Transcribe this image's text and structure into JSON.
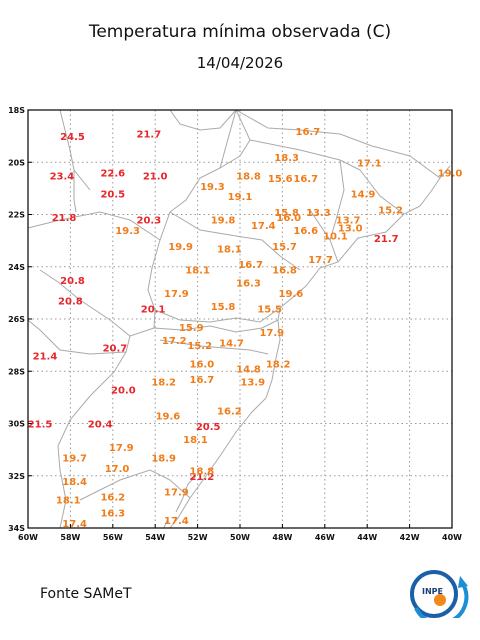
{
  "title": "Temperatura mínima observada (C)",
  "date": "14/04/2026",
  "source": "Fonte SAMeT",
  "logo_text": "INPE",
  "axes": {
    "lon_min": -60,
    "lon_max": -40,
    "lat_min": -34,
    "lat_max": -18,
    "lon_ticks": [
      {
        "v": -60,
        "t": "60W"
      },
      {
        "v": -58,
        "t": "58W"
      },
      {
        "v": -56,
        "t": "56W"
      },
      {
        "v": -54,
        "t": "54W"
      },
      {
        "v": -52,
        "t": "52W"
      },
      {
        "v": -50,
        "t": "50W"
      },
      {
        "v": -48,
        "t": "48W"
      },
      {
        "v": -46,
        "t": "46W"
      },
      {
        "v": -44,
        "t": "44W"
      },
      {
        "v": -42,
        "t": "42W"
      },
      {
        "v": -40,
        "t": "40W"
      }
    ],
    "lat_ticks": [
      {
        "v": -18,
        "t": "18S"
      },
      {
        "v": -20,
        "t": "20S"
      },
      {
        "v": -22,
        "t": "22S"
      },
      {
        "v": -24,
        "t": "24S"
      },
      {
        "v": -26,
        "t": "26S"
      },
      {
        "v": -28,
        "t": "28S"
      },
      {
        "v": -30,
        "t": "30S"
      },
      {
        "v": -32,
        "t": "32S"
      },
      {
        "v": -34,
        "t": "34S"
      }
    ],
    "grid": "dotted"
  },
  "colors": {
    "warm": "#e8262b",
    "mild": "#f07d1a",
    "border": "#aaaaaa",
    "frame": "#000000"
  },
  "stations": [
    {
      "lon": -57.9,
      "lat": -19.0,
      "v": "24.5"
    },
    {
      "lon": -54.3,
      "lat": -18.9,
      "v": "21.7"
    },
    {
      "lon": -58.4,
      "lat": -20.5,
      "v": "23.4"
    },
    {
      "lon": -56.0,
      "lat": -20.4,
      "v": "22.6"
    },
    {
      "lon": -54.0,
      "lat": -20.5,
      "v": "21.0"
    },
    {
      "lon": -56.0,
      "lat": -21.2,
      "v": "20.5"
    },
    {
      "lon": -58.3,
      "lat": -22.1,
      "v": "21.8"
    },
    {
      "lon": -54.3,
      "lat": -22.2,
      "v": "20.3"
    },
    {
      "lon": -55.3,
      "lat": -22.6,
      "v": "19.3"
    },
    {
      "lon": -52.8,
      "lat": -23.2,
      "v": "19.9"
    },
    {
      "lon": -57.9,
      "lat": -24.5,
      "v": "20.8"
    },
    {
      "lon": -58.0,
      "lat": -25.3,
      "v": "20.8"
    },
    {
      "lon": -54.1,
      "lat": -25.6,
      "v": "20.1"
    },
    {
      "lon": -59.2,
      "lat": -27.4,
      "v": "21.4"
    },
    {
      "lon": -55.9,
      "lat": -27.1,
      "v": "20.7"
    },
    {
      "lon": -55.5,
      "lat": -28.7,
      "v": "20.0"
    },
    {
      "lon": -59.9,
      "lat": -30.0,
      "v": "21.5"
    },
    {
      "lon": -56.6,
      "lat": -30.0,
      "v": "20.4"
    },
    {
      "lon": -51.5,
      "lat": -30.1,
      "v": "20.5"
    },
    {
      "lon": -51.8,
      "lat": -32.0,
      "v": "21.2"
    },
    {
      "lon": -43.1,
      "lat": -22.9,
      "v": "21.7"
    },
    {
      "lon": -51.3,
      "lat": -20.9,
      "v": "19.3"
    },
    {
      "lon": -49.6,
      "lat": -20.5,
      "v": "18.8"
    },
    {
      "lon": -48.1,
      "lat": -20.6,
      "v": "15.6"
    },
    {
      "lon": -46.9,
      "lat": -20.6,
      "v": "16.7"
    },
    {
      "lon": -46.8,
      "lat": -18.8,
      "v": "16.7"
    },
    {
      "lon": -47.8,
      "lat": -19.8,
      "v": "18.3"
    },
    {
      "lon": -43.9,
      "lat": -20.0,
      "v": "17.1"
    },
    {
      "lon": -40.0,
      "lat": -20.4,
      "v": "19.0"
    },
    {
      "lon": -50.0,
      "lat": -21.3,
      "v": "19.1"
    },
    {
      "lon": -50.8,
      "lat": -22.2,
      "v": "19.8"
    },
    {
      "lon": -47.8,
      "lat": -21.9,
      "v": "15.8"
    },
    {
      "lon": -46.3,
      "lat": -21.9,
      "v": "13.3"
    },
    {
      "lon": -44.2,
      "lat": -21.2,
      "v": "14.9"
    },
    {
      "lon": -47.7,
      "lat": -22.1,
      "v": "16.0"
    },
    {
      "lon": -48.9,
      "lat": -22.4,
      "v": "17.4"
    },
    {
      "lon": -44.9,
      "lat": -22.2,
      "v": "13.7"
    },
    {
      "lon": -42.9,
      "lat": -21.8,
      "v": "15.2"
    },
    {
      "lon": -44.8,
      "lat": -22.5,
      "v": "13.0"
    },
    {
      "lon": -46.9,
      "lat": -22.6,
      "v": "16.6"
    },
    {
      "lon": -45.5,
      "lat": -22.8,
      "v": "10.1"
    },
    {
      "lon": -50.5,
      "lat": -23.3,
      "v": "18.1"
    },
    {
      "lon": -47.9,
      "lat": -23.2,
      "v": "15.7"
    },
    {
      "lon": -49.5,
      "lat": -23.9,
      "v": "16.7"
    },
    {
      "lon": -47.9,
      "lat": -24.1,
      "v": "16.8"
    },
    {
      "lon": -46.2,
      "lat": -23.7,
      "v": "17.7"
    },
    {
      "lon": -52.0,
      "lat": -24.1,
      "v": "18.1"
    },
    {
      "lon": -49.6,
      "lat": -24.6,
      "v": "16.3"
    },
    {
      "lon": -53.0,
      "lat": -25.0,
      "v": "17.9"
    },
    {
      "lon": -50.8,
      "lat": -25.5,
      "v": "15.8"
    },
    {
      "lon": -48.6,
      "lat": -25.6,
      "v": "15.5"
    },
    {
      "lon": -47.6,
      "lat": -25.0,
      "v": "19.6"
    },
    {
      "lon": -52.3,
      "lat": -26.3,
      "v": "15.9"
    },
    {
      "lon": -48.5,
      "lat": -26.5,
      "v": "17.9"
    },
    {
      "lon": -53.1,
      "lat": -26.8,
      "v": "17.2"
    },
    {
      "lon": -51.9,
      "lat": -27.0,
      "v": "15.2"
    },
    {
      "lon": -50.4,
      "lat": -26.9,
      "v": "14.7"
    },
    {
      "lon": -51.8,
      "lat": -27.7,
      "v": "16.0"
    },
    {
      "lon": -48.2,
      "lat": -27.7,
      "v": "18.2"
    },
    {
      "lon": -49.6,
      "lat": -27.9,
      "v": "14.8"
    },
    {
      "lon": -53.6,
      "lat": -28.4,
      "v": "18.2"
    },
    {
      "lon": -51.8,
      "lat": -28.3,
      "v": "16.7"
    },
    {
      "lon": -49.4,
      "lat": -28.4,
      "v": "13.9"
    },
    {
      "lon": -50.5,
      "lat": -29.5,
      "v": "16.2"
    },
    {
      "lon": -53.4,
      "lat": -29.7,
      "v": "19.6"
    },
    {
      "lon": -52.1,
      "lat": -30.6,
      "v": "18.1"
    },
    {
      "lon": -55.6,
      "lat": -30.9,
      "v": "17.9"
    },
    {
      "lon": -57.8,
      "lat": -31.3,
      "v": "19.7"
    },
    {
      "lon": -53.6,
      "lat": -31.3,
      "v": "18.9"
    },
    {
      "lon": -55.8,
      "lat": -31.7,
      "v": "17.0"
    },
    {
      "lon": -51.8,
      "lat": -31.8,
      "v": "18.8"
    },
    {
      "lon": -57.8,
      "lat": -32.2,
      "v": "18.4"
    },
    {
      "lon": -53.0,
      "lat": -32.6,
      "v": "17.9"
    },
    {
      "lon": -58.1,
      "lat": -32.9,
      "v": "18.1"
    },
    {
      "lon": -56.0,
      "lat": -32.8,
      "v": "16.2"
    },
    {
      "lon": -56.0,
      "lat": -33.4,
      "v": "16.3"
    },
    {
      "lon": -53.0,
      "lat": -33.7,
      "v": "17.4"
    },
    {
      "lon": -57.8,
      "lat": -34.0,
      "v": "17.4"
    }
  ]
}
